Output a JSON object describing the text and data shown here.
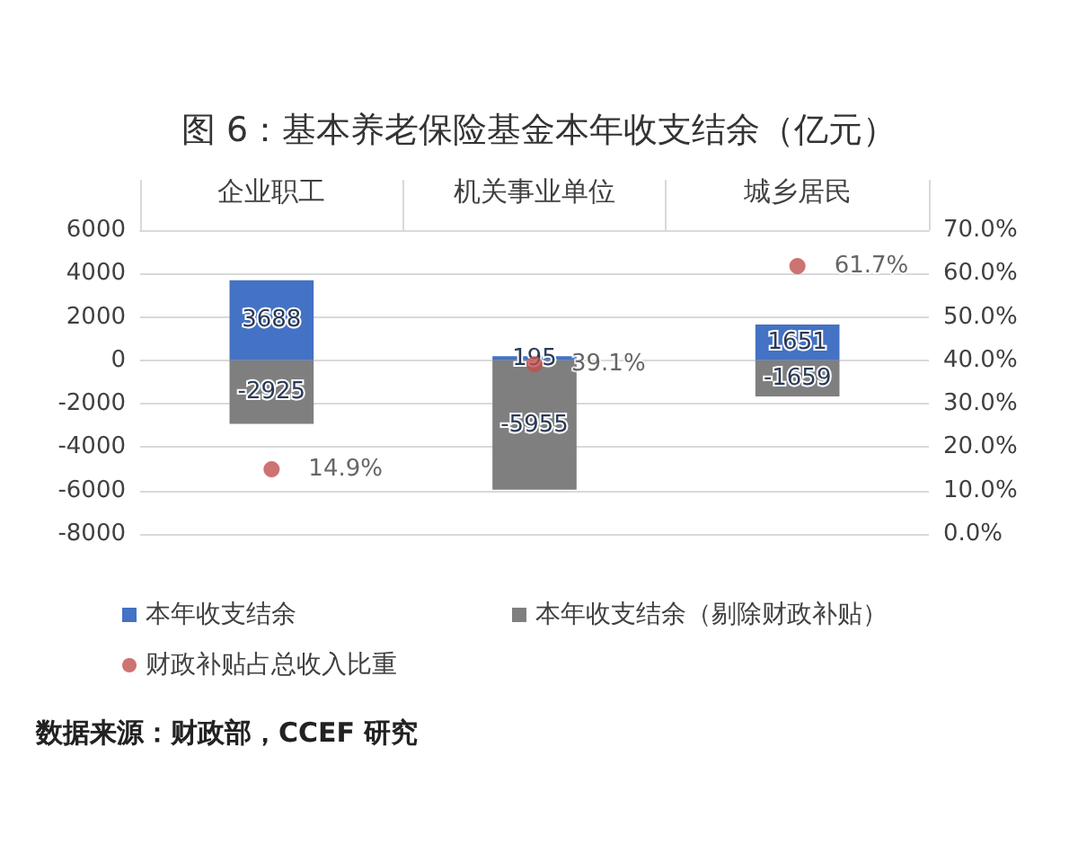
{
  "chart_data": {
    "type": "bar",
    "title": "图 6：基本养老保险基金本年收支结余（亿元）",
    "categories": [
      "企业职工",
      "机关事业单位",
      "城乡居民"
    ],
    "series": [
      {
        "name": "本年收支结余",
        "color": "#4472c4",
        "values": [
          3688,
          195,
          1651
        ],
        "value_labels": [
          "3688",
          "195",
          "1651"
        ]
      },
      {
        "name": "本年收支结余（剔除财政补贴）",
        "color": "#7f7f7f",
        "values": [
          -2925,
          -5955,
          -1659
        ],
        "value_labels": [
          "-2925",
          "-5955",
          "-1659"
        ]
      },
      {
        "name": "财政补贴占总收入比重",
        "type": "scatter",
        "axis": "y2",
        "color": "#c0504d",
        "marker": "circle",
        "values": [
          14.9,
          39.1,
          61.7
        ],
        "value_labels": [
          "14.9%",
          "39.1%",
          "61.7%"
        ]
      }
    ],
    "ylim": [
      -8000,
      6000
    ],
    "yticks": [
      -8000,
      -6000,
      -4000,
      -2000,
      0,
      2000,
      4000,
      6000
    ],
    "y2lim": [
      0,
      70
    ],
    "y2ticks": [
      {
        "value": 0,
        "label": "0.0%"
      },
      {
        "value": 10,
        "label": "10.0%"
      },
      {
        "value": 20,
        "label": "20.0%"
      },
      {
        "value": 30,
        "label": "30.0%"
      },
      {
        "value": 40,
        "label": "40.0%"
      },
      {
        "value": 50,
        "label": "50.0%"
      },
      {
        "value": 60,
        "label": "60.0%"
      },
      {
        "value": 70,
        "label": "70.0%"
      }
    ],
    "stacked": true,
    "grid": "y",
    "legend": "bottom",
    "annotations": [
      "数据来源：财政部，CCEF 研究"
    ]
  }
}
